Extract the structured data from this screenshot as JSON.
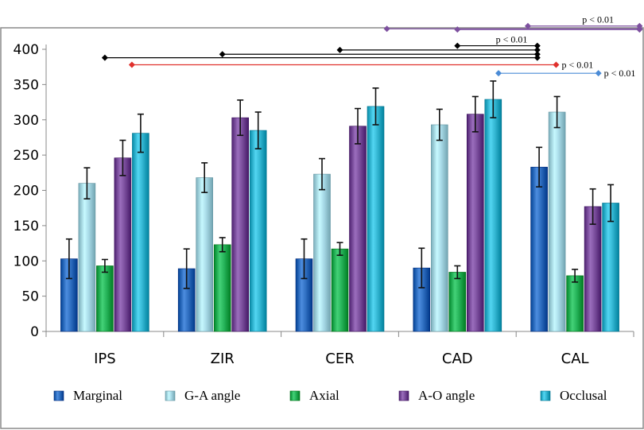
{
  "chart_data": {
    "type": "bar",
    "title": "",
    "xlabel": "",
    "ylabel": "",
    "ylim": [
      0,
      400
    ],
    "yticks": [
      0,
      50,
      100,
      150,
      200,
      250,
      300,
      350,
      400
    ],
    "categories": [
      "IPS",
      "ZIR",
      "CER",
      "CAD",
      "CAL"
    ],
    "series": [
      {
        "name": "Marginal",
        "color": "#2f6fc1",
        "values": [
          103,
          89,
          103,
          90,
          233
        ],
        "errors": [
          28,
          28,
          28,
          28,
          28
        ]
      },
      {
        "name": "G-A angle",
        "color": "#a9dbe8",
        "values": [
          210,
          218,
          223,
          293,
          311
        ],
        "errors": [
          22,
          21,
          22,
          22,
          22
        ]
      },
      {
        "name": "Axial",
        "color": "#26b45a",
        "values": [
          93,
          123,
          117,
          84,
          79
        ],
        "errors": [
          9,
          10,
          9,
          9,
          9
        ]
      },
      {
        "name": "A-O angle",
        "color": "#7d509f",
        "values": [
          246,
          303,
          291,
          308,
          177
        ],
        "errors": [
          25,
          25,
          25,
          25,
          25
        ]
      },
      {
        "name": "Occlusal",
        "color": "#35b8d4",
        "values": [
          281,
          285,
          319,
          329,
          182
        ],
        "errors": [
          27,
          26,
          26,
          26,
          26
        ]
      }
    ],
    "annotations": [
      {
        "label": "",
        "color": "#7d509f",
        "from_x": 3.0,
        "to_x": 4.55,
        "y_level": 428
      },
      {
        "label": "",
        "color": "#7d509f",
        "from_x": 2.4,
        "to_x": 4.55,
        "y_level": 429
      },
      {
        "label": "p < 0.01",
        "color": "#7d509f",
        "from_x": 3.6,
        "to_x": 4.55,
        "y_level": 433
      },
      {
        "label": "",
        "color": "#000000",
        "from_x": 0.0,
        "to_x": 3.68,
        "y_level": 388
      },
      {
        "label": "",
        "color": "#000000",
        "from_x": 1.0,
        "to_x": 3.68,
        "y_level": 393
      },
      {
        "label": "",
        "color": "#000000",
        "from_x": 2.0,
        "to_x": 3.68,
        "y_level": 399
      },
      {
        "label": "p < 0.01",
        "color": "#000000",
        "from_x": 3.0,
        "to_x": 3.68,
        "y_level": 405
      },
      {
        "label": "p < 0.01",
        "color": "#e0302c",
        "from_x": 0.23,
        "to_x": 3.84,
        "y_level": 378
      },
      {
        "label": "p < 0.01",
        "color": "#4a8bd6",
        "from_x": 3.35,
        "to_x": 4.2,
        "y_level": 366
      }
    ]
  }
}
